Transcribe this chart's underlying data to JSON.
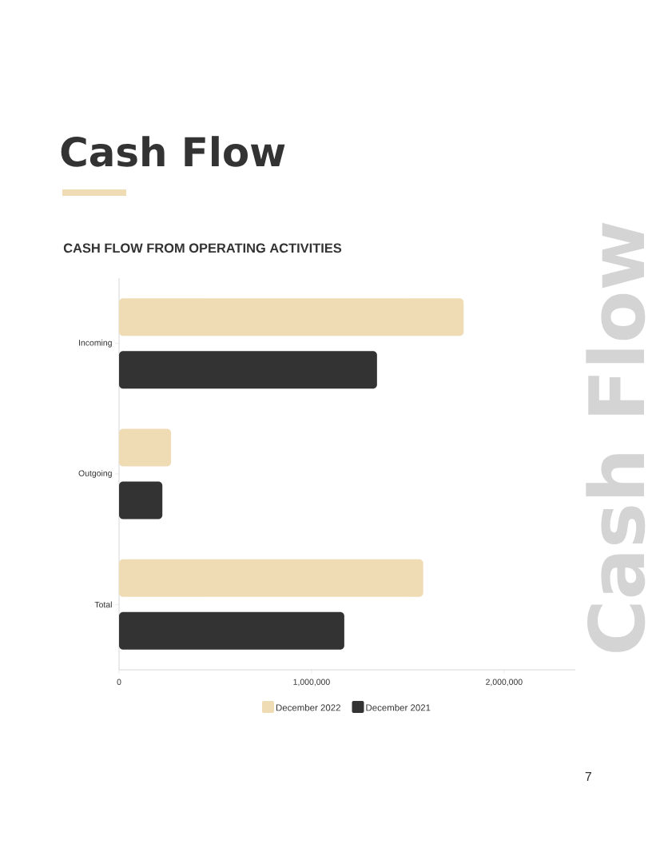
{
  "chart_data": {
    "type": "bar",
    "orientation": "horizontal",
    "title": "Cash Flow",
    "subtitle": "CASH FLOW FROM OPERATING ACTIVITIES",
    "categories": [
      "Incoming",
      "Outgoing",
      "Total"
    ],
    "series": [
      {
        "name": "December 2022",
        "color": "#f0dcb4",
        "values": [
          1790000,
          270000,
          1580000
        ]
      },
      {
        "name": "December 2021",
        "color": "#333333",
        "values": [
          1340000,
          225000,
          1170000
        ]
      }
    ],
    "xlim": [
      0,
      2370000
    ],
    "xticks": [
      0,
      {
        "value": 1000000,
        "label": "1,000,000"
      },
      {
        "value": 2000000,
        "label": "2,000,000"
      }
    ],
    "legend": "bottom",
    "annotations": [
      "Cash Flow",
      "7"
    ]
  }
}
